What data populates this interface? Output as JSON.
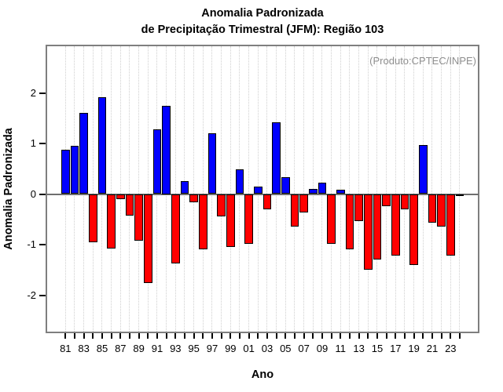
{
  "title": {
    "line1": "Anomalia Padronizada",
    "line2": "de Precipitação Trimestral (JFM): Região 103"
  },
  "chart_data": {
    "type": "bar",
    "title": "Anomalia Padronizada de Precipitação Trimestral (JFM): Região 103",
    "xlabel": "Ano",
    "ylabel": "Anomalia Padronizada",
    "annotation": "(Produto:CPTEC/INPE)",
    "years": [
      1981,
      1982,
      1983,
      1984,
      1985,
      1986,
      1987,
      1988,
      1989,
      1990,
      1991,
      1992,
      1993,
      1994,
      1995,
      1996,
      1997,
      1998,
      1999,
      2000,
      2001,
      2002,
      2003,
      2004,
      2005,
      2006,
      2007,
      2008,
      2009,
      2010,
      2011,
      2012,
      2013,
      2014,
      2015,
      2016,
      2017,
      2018,
      2019,
      2020,
      2021,
      2022,
      2023,
      2024
    ],
    "values": [
      0.87,
      0.95,
      1.6,
      -0.96,
      1.92,
      -1.08,
      -0.1,
      -0.42,
      -0.93,
      -1.76,
      1.28,
      1.75,
      -1.37,
      0.26,
      -0.17,
      -1.09,
      1.2,
      -0.44,
      -1.05,
      0.49,
      -0.98,
      0.14,
      -0.31,
      1.42,
      0.33,
      -0.64,
      -0.37,
      0.1,
      0.23,
      -0.99,
      0.08,
      -1.09,
      -0.53,
      -1.49,
      -1.3,
      -0.24,
      -1.22,
      -0.31,
      -1.4,
      0.97,
      -0.57,
      -0.65,
      -1.21,
      -0.02
    ],
    "x_tick_labels": [
      "81",
      "83",
      "85",
      "87",
      "89",
      "91",
      "93",
      "95",
      "97",
      "99",
      "01",
      "03",
      "05",
      "07",
      "09",
      "11",
      "13",
      "15",
      "17",
      "19",
      "21",
      "23"
    ],
    "ytick_values": [
      2,
      1,
      0,
      -1,
      -2
    ],
    "ytick_labels": [
      "2",
      "1",
      "0",
      "-1",
      "-2"
    ],
    "ylim": [
      -2.75,
      2.95
    ],
    "grid": "vertical-dotted-every-year",
    "legend": "none",
    "colors": {
      "positive_bar": "#0000ff",
      "negative_bar": "#ff0000",
      "bar_outline": "#000000",
      "plot_border": "#7f7f7f",
      "zero_line": "#6e6e6e",
      "gridline": "#cfcfcf",
      "annotation_text": "#8e8e8e",
      "text": "#000000",
      "background": "#ffffff"
    }
  }
}
